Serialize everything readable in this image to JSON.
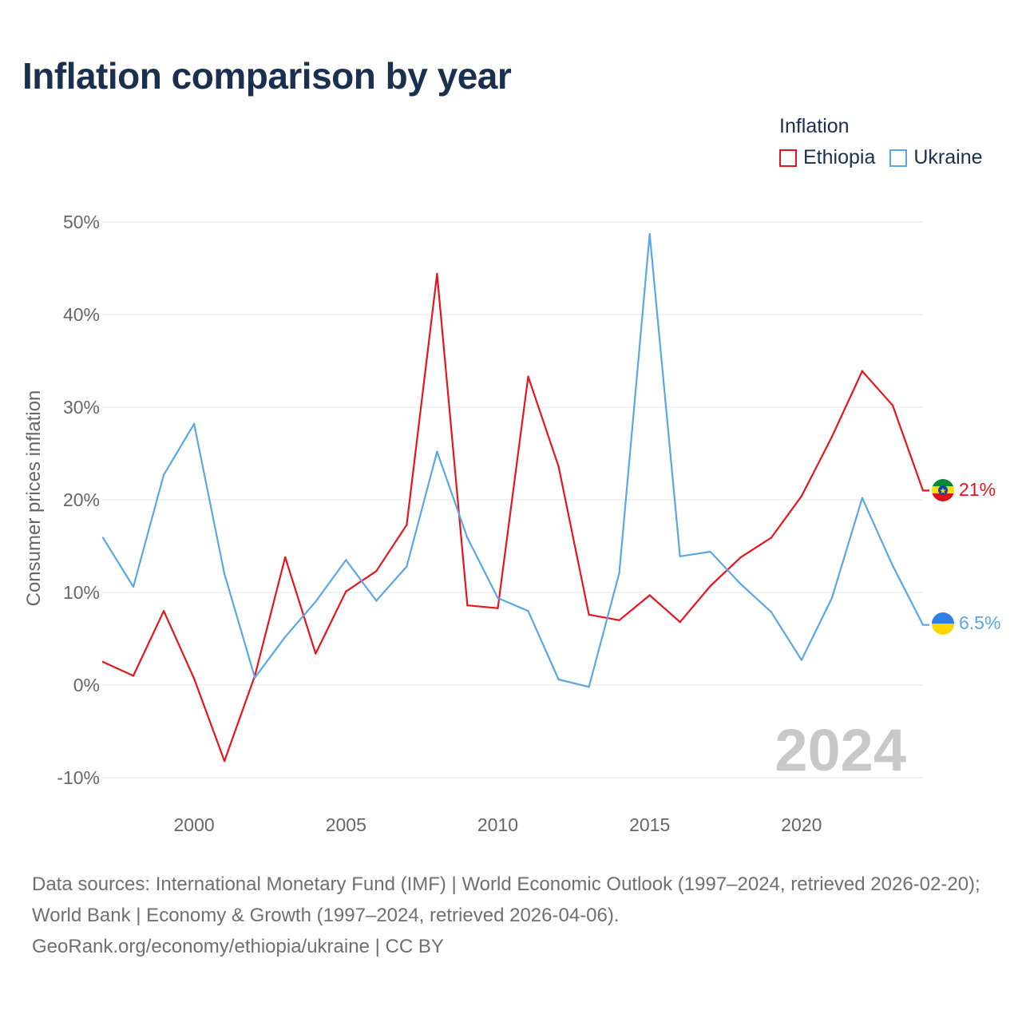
{
  "title": "Inflation comparison by year",
  "legend": {
    "title": "Inflation",
    "items": [
      {
        "label": "Ethiopia",
        "color": "#e8141c"
      },
      {
        "label": "Ukraine",
        "color": "#5aa7e4"
      }
    ]
  },
  "chart_data": {
    "type": "line",
    "ylabel": "Consumer prices inflation",
    "ylim": [
      -10,
      50
    ],
    "yticks": [
      -10,
      0,
      10,
      20,
      30,
      40,
      50
    ],
    "ytick_labels": [
      "-10%",
      "0%",
      "10%",
      "20%",
      "30%",
      "40%",
      "50%"
    ],
    "xlim": [
      1997,
      2024
    ],
    "xticks": [
      2000,
      2005,
      2010,
      2015,
      2020
    ],
    "xtick_labels": [
      "2000",
      "2005",
      "2010",
      "2015",
      "2020"
    ],
    "x": [
      1997,
      1998,
      1999,
      2000,
      2001,
      2002,
      2003,
      2004,
      2005,
      2006,
      2007,
      2008,
      2009,
      2010,
      2011,
      2012,
      2013,
      2014,
      2015,
      2016,
      2017,
      2018,
      2019,
      2020,
      2021,
      2022,
      2023,
      2024
    ],
    "series": [
      {
        "name": "Ethiopia",
        "color": "#e8141c",
        "values": [
          2.5,
          1.0,
          8.0,
          0.7,
          -8.2,
          1.0,
          13.8,
          3.4,
          10.1,
          12.3,
          17.3,
          44.4,
          8.6,
          8.3,
          33.3,
          23.6,
          7.6,
          7.0,
          9.7,
          6.8,
          10.7,
          13.8,
          15.9,
          20.4,
          26.8,
          33.9,
          30.2,
          21.0
        ],
        "end_label": "21%",
        "flag": "ethiopia-flag"
      },
      {
        "name": "Ukraine",
        "color": "#5aa7e4",
        "values": [
          15.9,
          10.6,
          22.7,
          28.2,
          12.0,
          0.8,
          5.2,
          9.0,
          13.5,
          9.1,
          12.8,
          25.2,
          15.9,
          9.4,
          8.0,
          0.6,
          -0.2,
          12.1,
          48.7,
          13.9,
          14.4,
          10.9,
          7.9,
          2.7,
          9.4,
          20.2,
          12.9,
          6.5
        ],
        "end_label": "6.5%",
        "flag": "ukraine-flag"
      }
    ],
    "watermark_year": "2024",
    "grid": true
  },
  "footer": {
    "sources": "Data sources: International Monetary Fund (IMF) | World Economic Outlook (1997–2024, retrieved 2026-02-20); World Bank | Economy & Growth (1997–2024, retrieved 2026-04-06).",
    "credit": "GeoRank.org/economy/ethiopia/ukraine | CC BY"
  }
}
